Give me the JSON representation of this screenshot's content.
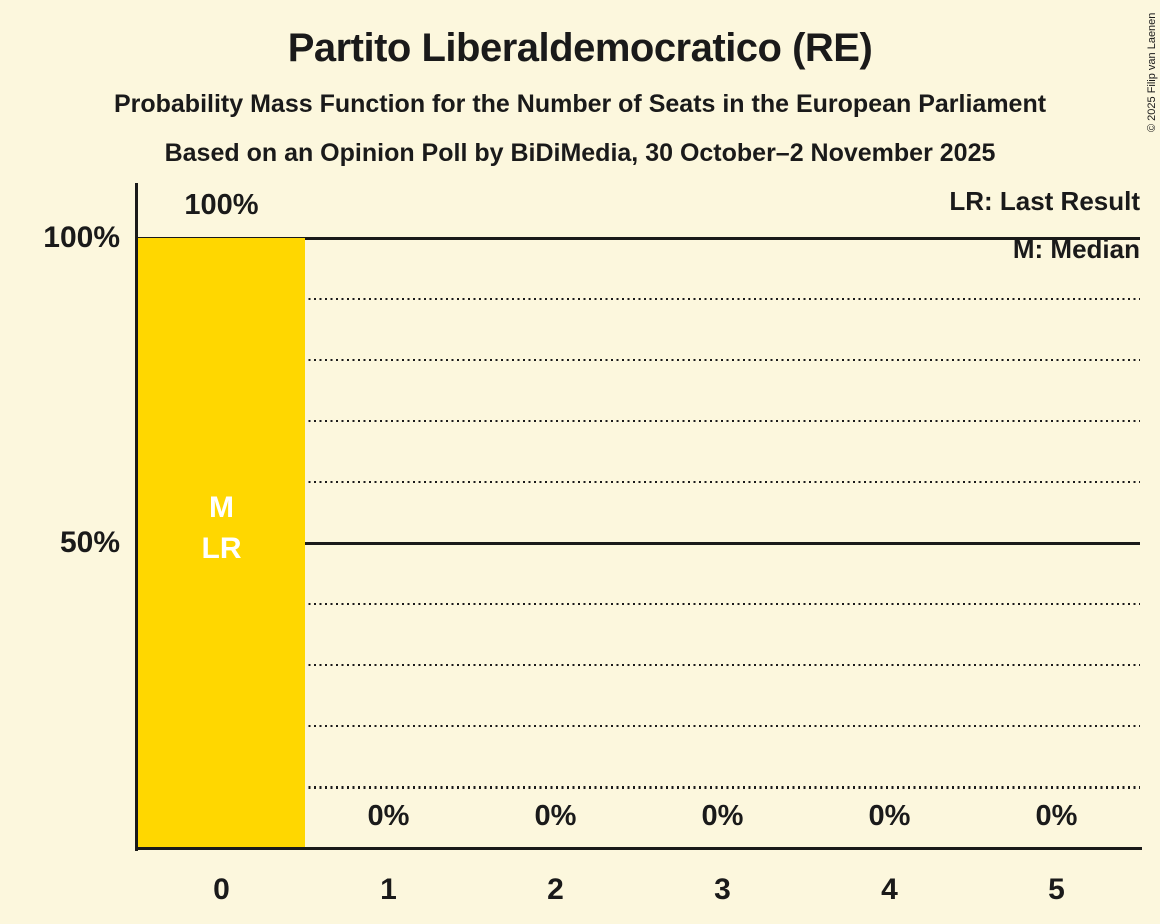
{
  "header": {
    "title": "Partito Liberaldemocratico (RE)",
    "subtitle_function": "Probability Mass Function for the Number of Seats in the European Parliament",
    "subtitle_poll": "Based on an Opinion Poll by BiDiMedia, 30 October–2 November 2025"
  },
  "legend": {
    "last_result": "LR: Last Result",
    "median": "M: Median"
  },
  "copyright": "© 2025 Filip van Laenen",
  "colors": {
    "background": "#FCF7DD",
    "bar": "#FFD700",
    "text": "#1A1A1A",
    "annotation_text": "#FFFFFF"
  },
  "chart_data": {
    "type": "bar",
    "title": "Partito Liberaldemocratico (RE)",
    "categories": [
      "0",
      "1",
      "2",
      "3",
      "4",
      "5"
    ],
    "values": [
      100,
      0,
      0,
      0,
      0,
      0
    ],
    "value_labels": [
      "100%",
      "0%",
      "0%",
      "0%",
      "0%",
      "0%"
    ],
    "ylim": [
      0,
      100
    ],
    "ytick_values": [
      100,
      50
    ],
    "ytick_labels": [
      "100%",
      "50%"
    ],
    "solid_gridlines": [
      100,
      50
    ],
    "dotted_gridlines": [
      90,
      80,
      70,
      60,
      40,
      30,
      20,
      10
    ],
    "legend_position": "top-right",
    "median_seats": 0,
    "last_result_seats": 0,
    "bar_annotations": [
      {
        "category": "0",
        "lines": [
          "M",
          "LR"
        ]
      }
    ]
  }
}
